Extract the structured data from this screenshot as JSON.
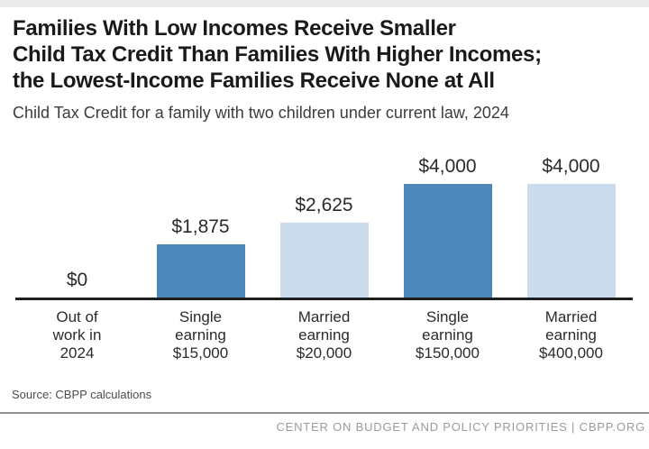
{
  "header": {
    "title_lines": [
      "Families With Low Incomes Receive Smaller",
      "Child Tax Credit Than Families With Higher Incomes;",
      "the Lowest-Income Families Receive None at All"
    ],
    "subtitle": "Child Tax Credit for a family with two children under current law, 2024"
  },
  "chart_data": {
    "type": "bar",
    "title": "Child Tax Credit for a family with two children under current law, 2024",
    "categories": [
      "Out of work in 2024",
      "Single earning $15,000",
      "Married earning $20,000",
      "Single earning $150,000",
      "Married earning $400,000"
    ],
    "cat_lines": [
      [
        "Out of",
        "work in",
        "2024"
      ],
      [
        "Single",
        "earning",
        "$15,000"
      ],
      [
        "Married",
        "earning",
        "$20,000"
      ],
      [
        "Single",
        "earning",
        "$150,000"
      ],
      [
        "Married",
        "earning",
        "$400,000"
      ]
    ],
    "values": [
      0,
      1875,
      2625,
      4000,
      4000
    ],
    "value_labels": [
      "$0",
      "$1,875",
      "$2,625",
      "$4,000",
      "$4,000"
    ],
    "bar_colors": [
      "#4E87B9",
      "#4E87B9",
      "#C9DBEC",
      "#4E87B9",
      "#C9DBEC"
    ],
    "ylim": [
      0,
      4000
    ],
    "xlabel": "",
    "ylabel": "",
    "grid": false,
    "legend": false
  },
  "footer": {
    "source": "Source: CBPP calculations",
    "org_line": "CENTER ON BUDGET AND POLICY PRIORITIES | CBPP.ORG"
  },
  "colors": {
    "dark_blue": "#4E87B9",
    "light_blue": "#C9DBEC",
    "axis": "#1f1f1f",
    "top_strip": "#ebebeb",
    "divider": "#8e8e8e",
    "footer_text": "#9b9b9b"
  }
}
